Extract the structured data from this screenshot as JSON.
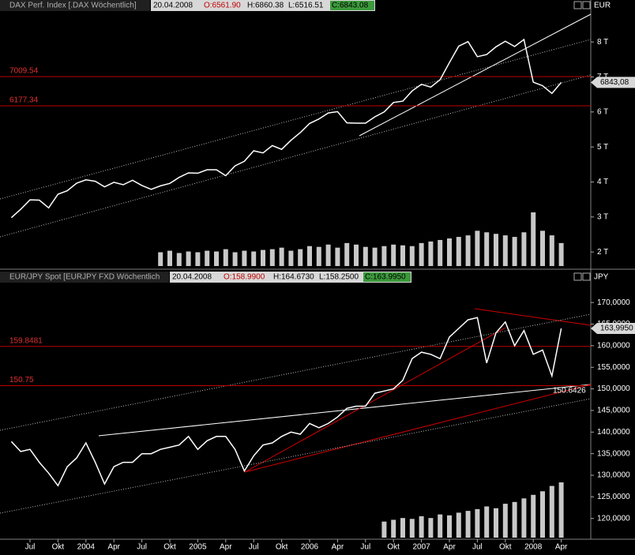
{
  "chart_data": [
    {
      "type": "line",
      "header": {
        "title": "DAX Perf. Index [.DAX  Wöchentlich]",
        "date": "20.04.2008",
        "open": "O:6561.90",
        "high": "H:6860.38",
        "low": "L:6516.51",
        "close": "C:6843.08"
      },
      "unit": "EUR",
      "ylim": [
        1530,
        8860
      ],
      "yticks": [
        {
          "value": 2000,
          "label": "2 T"
        },
        {
          "value": 3000,
          "label": "3 T"
        },
        {
          "value": 4000,
          "label": "4 T"
        },
        {
          "value": 5000,
          "label": "5 T"
        },
        {
          "value": 6000,
          "label": "6 T"
        },
        {
          "value": 7000,
          "label": "7 T"
        },
        {
          "value": 8000,
          "label": "8 T"
        }
      ],
      "levels": [
        7009.54,
        6177.34
      ],
      "last_price": {
        "value": 6843.08,
        "label": "6843,08"
      },
      "series": [
        {
          "color": "#ffffff",
          "values": [
            2980,
            3220,
            3490,
            3480,
            3260,
            3650,
            3750,
            3965,
            4060,
            4020,
            3860,
            3990,
            3920,
            4050,
            3900,
            3790,
            3890,
            3960,
            4130,
            4260,
            4250,
            4350,
            4350,
            4180,
            4460,
            4590,
            4890,
            4830,
            5040,
            4930,
            5190,
            5410,
            5670,
            5800,
            5970,
            6010,
            5690,
            5680,
            5680,
            5860,
            6000,
            6270,
            6310,
            6600,
            6790,
            6710,
            6920,
            7410,
            7880,
            8010,
            7580,
            7640,
            7860,
            8020,
            7870,
            8070,
            6850,
            6750,
            6530,
            6843.08
          ]
        }
      ],
      "volume": {
        "color": "#c8c8c8",
        "values": [
          null,
          null,
          null,
          null,
          null,
          null,
          null,
          null,
          null,
          null,
          null,
          null,
          null,
          null,
          null,
          null,
          18,
          20,
          17,
          19,
          18,
          20,
          19,
          22,
          18,
          20,
          19,
          21,
          22,
          24,
          20,
          22,
          26,
          25,
          28,
          24,
          30,
          28,
          25,
          24,
          26,
          28,
          27,
          26,
          30,
          32,
          34,
          36,
          38,
          40,
          46,
          44,
          42,
          40,
          38,
          44,
          70,
          46,
          40,
          30
        ]
      }
    },
    {
      "type": "line",
      "header": {
        "title": "EUR/JPY Spot [EURJPY FXD  Wöchentlich",
        "date": "20.04.2008",
        "open": "O:158.9900",
        "high": "H:164.6730",
        "low": "L:158.2500",
        "close": "C:163.9950"
      },
      "unit": "JPY",
      "categories": [
        null,
        null,
        "Jul",
        null,
        null,
        "Okt",
        null,
        null,
        "2004",
        null,
        null,
        "Apr",
        null,
        null,
        "Jul",
        null,
        null,
        "Okt",
        null,
        null,
        "2005",
        null,
        null,
        "Apr",
        null,
        null,
        "Jul",
        null,
        null,
        "Okt",
        null,
        null,
        "2006",
        null,
        null,
        "Apr",
        null,
        null,
        "Jul",
        null,
        null,
        "Okt",
        null,
        null,
        "2007",
        null,
        null,
        "Apr",
        null,
        null,
        "Jul",
        null,
        null,
        "Okt",
        null,
        null,
        "2008",
        null,
        null,
        "Apr"
      ],
      "ylim": [
        115.2,
        174.6
      ],
      "yticks": [
        {
          "value": 120,
          "label": "120,0000"
        },
        {
          "value": 125,
          "label": "125,0000"
        },
        {
          "value": 130,
          "label": "130,0000"
        },
        {
          "value": 135,
          "label": "135,0000"
        },
        {
          "value": 140,
          "label": "140,0000"
        },
        {
          "value": 145,
          "label": "145,0000"
        },
        {
          "value": 150,
          "label": "150,0000"
        },
        {
          "value": 155,
          "label": "155,0000"
        },
        {
          "value": 160,
          "label": "160,0000"
        },
        {
          "value": 165,
          "label": "165,0000"
        },
        {
          "value": 170,
          "label": "170,0000"
        }
      ],
      "levels": [
        159.8481,
        150.75
      ],
      "trendline_value": 150.6426,
      "last_price": {
        "value": 163.995,
        "label": "163,9950"
      },
      "series": [
        {
          "color": "#ffffff",
          "values": [
            137.8,
            135.5,
            136,
            133,
            130.5,
            127.6,
            132,
            134,
            137.5,
            133,
            128,
            132,
            133,
            133,
            135,
            135,
            136,
            136.5,
            137,
            139,
            136,
            138,
            139,
            139,
            136,
            131,
            134.5,
            137,
            137.5,
            139,
            140,
            139.5,
            142,
            141,
            142,
            143.5,
            145.5,
            146,
            146,
            149,
            149.5,
            150,
            152,
            157,
            158.5,
            158,
            157,
            162,
            164,
            166,
            166.5,
            156,
            163,
            165.5,
            160,
            163.5,
            158,
            159,
            153,
            163.995
          ]
        }
      ],
      "volume": {
        "color": "#c8c8c8",
        "values": [
          null,
          null,
          null,
          null,
          null,
          null,
          null,
          null,
          null,
          null,
          null,
          null,
          null,
          null,
          null,
          null,
          null,
          null,
          null,
          null,
          null,
          null,
          null,
          null,
          null,
          null,
          null,
          null,
          null,
          null,
          null,
          null,
          null,
          null,
          null,
          null,
          null,
          null,
          null,
          null,
          18,
          20,
          22,
          21,
          24,
          22,
          26,
          25,
          28,
          30,
          32,
          35,
          33,
          38,
          40,
          44,
          48,
          52,
          58,
          62
        ]
      }
    }
  ]
}
